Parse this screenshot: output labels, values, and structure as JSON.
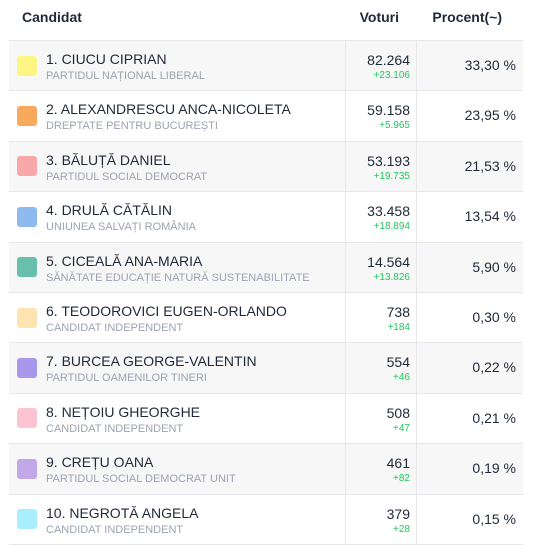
{
  "header": {
    "candidate_label": "Candidat",
    "votes_label": "Voturi",
    "percent_label": "Procent(~)"
  },
  "rows": [
    {
      "name": "1. CIUCU CIPRIAN",
      "party": "PARTIDUL NAȚIONAL LIBERAL",
      "votes": "82.264",
      "delta": "+23.106",
      "percent": "33,30 %",
      "color": "#fdf684"
    },
    {
      "name": "2. ALEXANDRESCU ANCA-NICOLETA",
      "party": "DREPTATE PENTRU BUCUREȘTI",
      "votes": "59.158",
      "delta": "+5.965",
      "percent": "23,95 %",
      "color": "#f9a95e"
    },
    {
      "name": "3. BĂLUȚĂ DANIEL",
      "party": "PARTIDUL SOCIAL DEMOCRAT",
      "votes": "53.193",
      "delta": "+19.735",
      "percent": "21,53 %",
      "color": "#f8a8a8"
    },
    {
      "name": "4. DRULĂ CĂTĂLIN",
      "party": "UNIUNEA SALVAȚI ROMÂNIA",
      "votes": "33.458",
      "delta": "+18.894",
      "percent": "13,54 %",
      "color": "#8fbaf0"
    },
    {
      "name": "5. CICEALĂ ANA-MARIA",
      "party": "SĂNĂTATE EDUCAȚIE NATURĂ SUSTENABILITATE",
      "votes": "14.564",
      "delta": "+13.826",
      "percent": "5,90 %",
      "color": "#68c0ac"
    },
    {
      "name": "6. TEODOROVICI EUGEN-ORLANDO",
      "party": "CANDIDAT INDEPENDENT",
      "votes": "738",
      "delta": "+184",
      "percent": "0,30 %",
      "color": "#fde4b1"
    },
    {
      "name": "7. BURCEA GEORGE-VALENTIN",
      "party": "PARTIDUL OAMENILOR TINERI",
      "votes": "554",
      "delta": "+46",
      "percent": "0,22 %",
      "color": "#a898ec"
    },
    {
      "name": "8. NEȚOIU GHEORGHE",
      "party": "CANDIDAT INDEPENDENT",
      "votes": "508",
      "delta": "+47",
      "percent": "0,21 %",
      "color": "#fcc3d2"
    },
    {
      "name": "9. CREȚU OANA",
      "party": "PARTIDUL SOCIAL DEMOCRAT UNIT",
      "votes": "461",
      "delta": "+82",
      "percent": "0,19 %",
      "color": "#c2a8e6"
    },
    {
      "name": "10. NEGROTĂ ANGELA",
      "party": "CANDIDAT INDEPENDENT",
      "votes": "379",
      "delta": "+28",
      "percent": "0,15 %",
      "color": "#a8eefc"
    }
  ]
}
